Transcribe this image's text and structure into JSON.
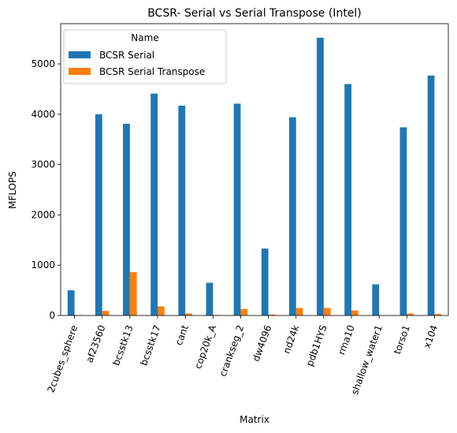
{
  "chart_data": {
    "type": "bar",
    "title": "BCSR- Serial vs Serial Transpose (Intel)",
    "xlabel": "Matrix",
    "ylabel": "MFLOPS",
    "ylim": [
      0,
      5800
    ],
    "yticks": [
      0,
      1000,
      2000,
      3000,
      4000,
      5000
    ],
    "categories": [
      "2cubes_sphere",
      "af23560",
      "bcsstk13",
      "bcsstk17",
      "cant",
      "cop20k_A",
      "crankseg_2",
      "dw4096",
      "nd24k",
      "pdb1HYS",
      "rma10",
      "shallow_water1",
      "torso1",
      "x104"
    ],
    "series": [
      {
        "name": "BCSR Serial",
        "color": "#1f77b4",
        "values": [
          500,
          4000,
          3810,
          4410,
          4170,
          650,
          4210,
          1330,
          3940,
          5520,
          4600,
          620,
          3740,
          4770
        ]
      },
      {
        "name": "BCSR Serial Transpose",
        "color": "#ff7f0e",
        "values": [
          10,
          90,
          860,
          180,
          40,
          10,
          130,
          20,
          150,
          150,
          100,
          5,
          40,
          30
        ]
      }
    ],
    "legend": {
      "title": "Name",
      "placement": "top-left"
    },
    "grid": false
  }
}
